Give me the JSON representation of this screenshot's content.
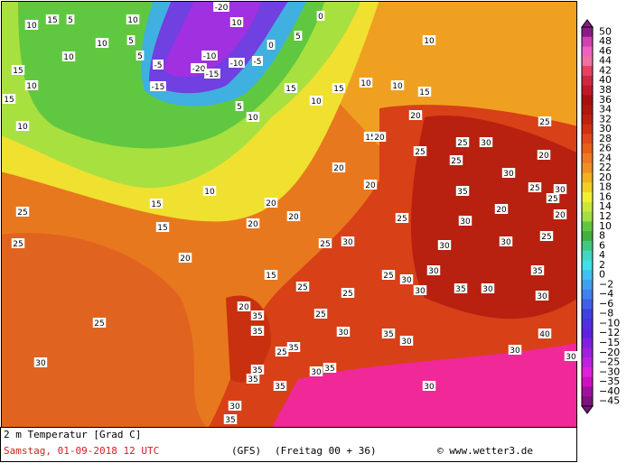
{
  "legend": {
    "labels": [
      "50",
      "48",
      "46",
      "44",
      "42",
      "40",
      "38",
      "36",
      "34",
      "32",
      "30",
      "28",
      "26",
      "24",
      "22",
      "20",
      "18",
      "16",
      "14",
      "12",
      "10",
      "8",
      "6",
      "4",
      "2",
      "0",
      "−2",
      "−4",
      "−6",
      "−8",
      "−10",
      "−12",
      "−15",
      "−20",
      "−25",
      "−30",
      "−35",
      "−40",
      "−45"
    ]
  },
  "map": {
    "labels": [
      15,
      10,
      5,
      10,
      5,
      10,
      15,
      10,
      15,
      10,
      10,
      5,
      -20,
      -5,
      -10,
      -20,
      -15,
      -10,
      -15,
      -5,
      0,
      5,
      0,
      10,
      5,
      10,
      15,
      10,
      15,
      10,
      10,
      15,
      10,
      20,
      15,
      20,
      20,
      10,
      15,
      20,
      20,
      25,
      25,
      15,
      20,
      25,
      20,
      30,
      25,
      30,
      25,
      30,
      20,
      25,
      25,
      20,
      30,
      30,
      25,
      30,
      30,
      30,
      35,
      25,
      30,
      35,
      25,
      30,
      20,
      25,
      25,
      35,
      30,
      35,
      25,
      30,
      35,
      35,
      30,
      30,
      35,
      40,
      30,
      35,
      30,
      25,
      30,
      35,
      35,
      30,
      35,
      30,
      25,
      25,
      35,
      30,
      25,
      20,
      15,
      20
    ]
  },
  "footer": {
    "variable": "2 m Temperatur [Grad C]",
    "date": "Samstag, 01-09-2018  12 UTC",
    "model": "(GFS)",
    "run": "(Freitag 00 + 36)",
    "source": "© www.wetter3.de"
  }
}
